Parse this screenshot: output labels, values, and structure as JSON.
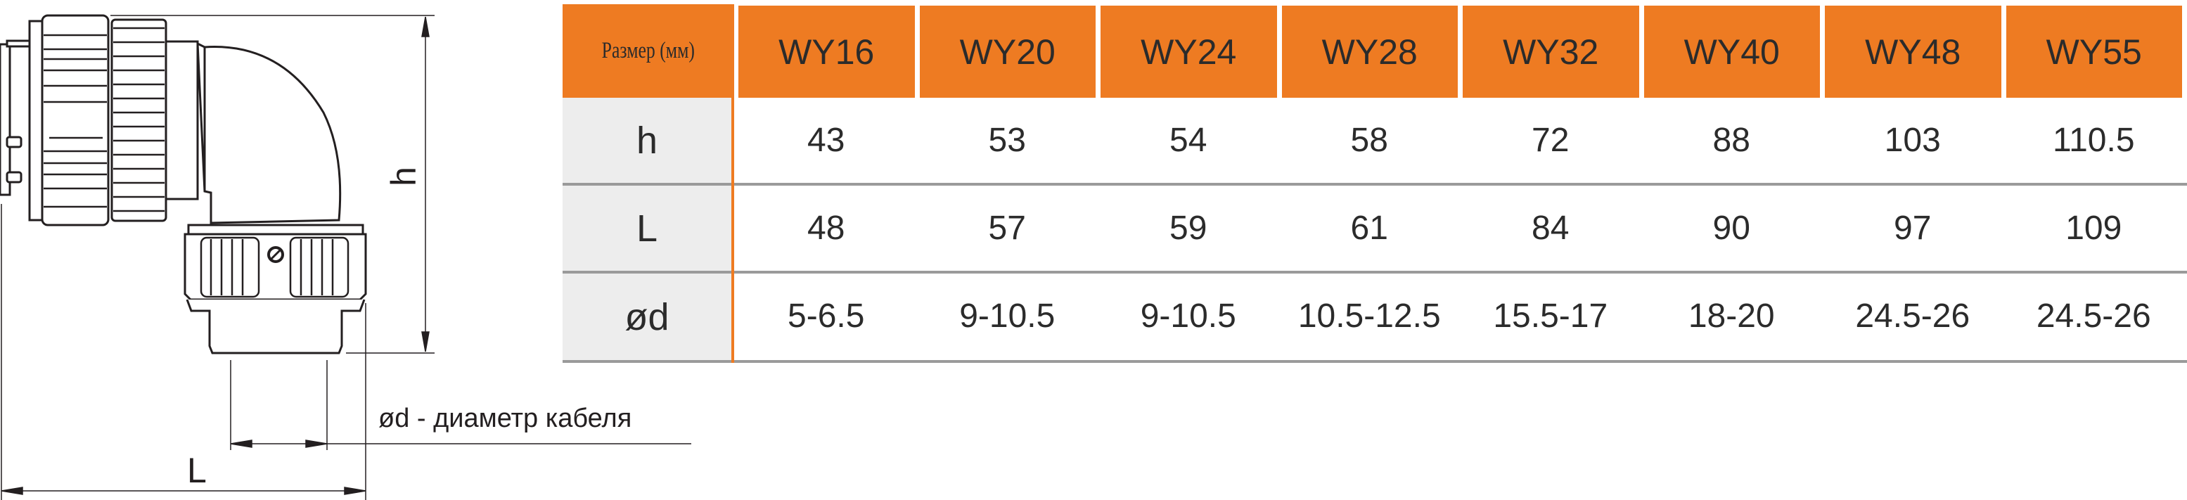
{
  "drawing": {
    "h_label": "h",
    "L_label": "L",
    "cable_note": "ød - диаметр кабеля"
  },
  "table": {
    "header_label": "Размер (мм)",
    "colors": {
      "header": "#ee7b22",
      "label_bg": "#ededed",
      "separator": "#9a9a9a"
    },
    "columns": [
      "WY16",
      "WY20",
      "WY24",
      "WY28",
      "WY32",
      "WY40",
      "WY48",
      "WY55"
    ],
    "rows": [
      {
        "label": "h",
        "values": [
          "43",
          "53",
          "54",
          "58",
          "72",
          "88",
          "103",
          "110.5"
        ]
      },
      {
        "label": "L",
        "values": [
          "48",
          "57",
          "59",
          "61",
          "84",
          "90",
          "97",
          "109"
        ]
      },
      {
        "label": "ød",
        "values": [
          "5-6.5",
          "9-10.5",
          "9-10.5",
          "10.5-12.5",
          "15.5-17",
          "18-20",
          "24.5-26",
          "24.5-26"
        ]
      }
    ]
  }
}
